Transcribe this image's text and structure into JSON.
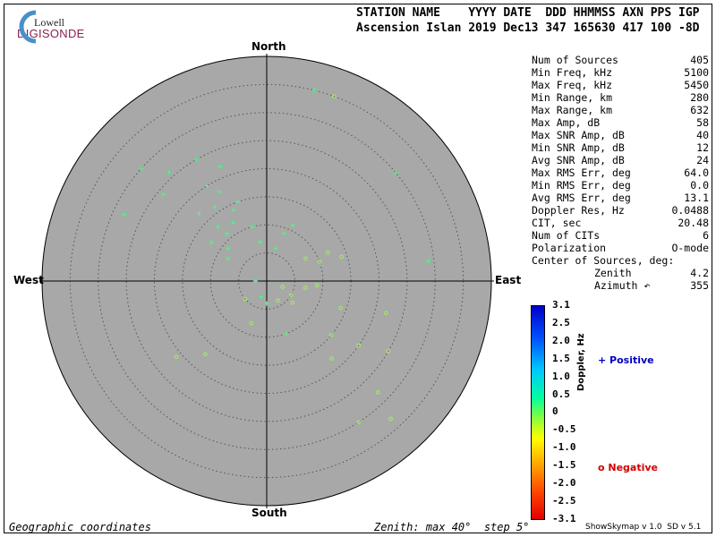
{
  "logo": {
    "top": "Lowell",
    "bottom": "DIGISONDE"
  },
  "header": {
    "line1": "STATION NAME    YYYY DATE  DDD HHMMSS AXN PPS IGP",
    "line2": "Ascension Islan 2019 Dec13 347 165630 417 100 -8D"
  },
  "directions": {
    "north": "North",
    "south": "South",
    "east": "East",
    "west": "West"
  },
  "stats": [
    {
      "label": "Num of Sources",
      "value": "405"
    },
    {
      "label": "Min Freq, kHz",
      "value": "5100"
    },
    {
      "label": "Max Freq, kHz",
      "value": "5450"
    },
    {
      "label": "Min Range, km",
      "value": "280"
    },
    {
      "label": "Max Range, km",
      "value": "632"
    },
    {
      "label": "Max Amp, dB",
      "value": "58"
    },
    {
      "label": "Max SNR Amp, dB",
      "value": "40"
    },
    {
      "label": "Min SNR Amp, dB",
      "value": "12"
    },
    {
      "label": "Avg SNR Amp, dB",
      "value": "24"
    },
    {
      "label": "Max RMS Err, deg",
      "value": "64.0"
    },
    {
      "label": "Min RMS Err, deg",
      "value": "0.0"
    },
    {
      "label": "Avg RMS Err, deg",
      "value": "13.1"
    },
    {
      "label": "Doppler Res, Hz",
      "value": "0.0488"
    },
    {
      "label": "CIT, sec",
      "value": "20.48"
    },
    {
      "label": "Num of CITs",
      "value": "6"
    },
    {
      "label": "Polarization",
      "value": "O-mode"
    },
    {
      "label": "Center of Sources, deg:",
      "value": ""
    },
    {
      "label": "Zenith",
      "value": "4.2",
      "indent": true
    },
    {
      "label": "Azimuth ↶",
      "value": "355",
      "indent": true
    }
  ],
  "colorbar": {
    "title": "Doppler, Hz",
    "ticks": [
      "3.1",
      "2.5",
      "2.0",
      "1.5",
      "1.0",
      "0.5",
      "0",
      "-0.5",
      "-1.0",
      "-1.5",
      "-2.0",
      "-2.5",
      "-3.1"
    ],
    "range": [
      -3.1,
      3.1
    ]
  },
  "legend": {
    "positive": "+ Positive",
    "negative": "o Negative"
  },
  "footer": {
    "left": "Geographic coordinates",
    "mid": "Zenith: max 40°  step 5°",
    "right": "ShowSkymap v 1.0  SD v 5.1"
  },
  "chart_data": {
    "type": "scatter",
    "title": "",
    "xlabel": "",
    "ylabel": "",
    "polar": true,
    "zenith_max_deg": 40,
    "ring_step_deg": 5,
    "marker_encoding": "+ = positive Doppler, o = negative Doppler",
    "series": [
      {
        "marker": "plus",
        "color": "#40ff80",
        "points": [
          {
            "zenith": 12,
            "azimuth": 330
          },
          {
            "zenith": 14,
            "azimuth": 335
          },
          {
            "zenith": 16,
            "azimuth": 325
          },
          {
            "zenith": 11,
            "azimuth": 320
          },
          {
            "zenith": 9,
            "azimuth": 310
          },
          {
            "zenith": 13,
            "azimuth": 318
          },
          {
            "zenith": 15,
            "azimuth": 340
          },
          {
            "zenith": 18,
            "azimuth": 332
          },
          {
            "zenith": 20,
            "azimuth": 328
          },
          {
            "zenith": 22,
            "azimuth": 338
          },
          {
            "zenith": 8,
            "azimuth": 300
          },
          {
            "zenith": 10,
            "azimuth": 345
          },
          {
            "zenith": 7,
            "azimuth": 350
          },
          {
            "zenith": 12,
            "azimuth": 305
          },
          {
            "zenith": 17,
            "azimuth": 315
          },
          {
            "zenith": 25,
            "azimuth": 330
          },
          {
            "zenith": 26,
            "azimuth": 318
          },
          {
            "zenith": 24,
            "azimuth": 310
          },
          {
            "zenith": 6,
            "azimuth": 15
          },
          {
            "zenith": 9,
            "azimuth": 20
          },
          {
            "zenith": 11,
            "azimuth": 25
          },
          {
            "zenith": 35,
            "azimuth": 14
          },
          {
            "zenith": 30,
            "azimuth": 50
          },
          {
            "zenith": 29,
            "azimuth": 83
          },
          {
            "zenith": 30,
            "azimuth": 312
          },
          {
            "zenith": 28,
            "azimuth": 295
          },
          {
            "zenith": 4,
            "azimuth": 180
          },
          {
            "zenith": 2,
            "azimuth": 270
          },
          {
            "zenith": 3,
            "azimuth": 200
          },
          {
            "zenith": 10,
            "azimuth": 160
          }
        ]
      },
      {
        "marker": "circle",
        "color": "#a0f060",
        "points": [
          {
            "zenith": 8,
            "azimuth": 60
          },
          {
            "zenith": 10,
            "azimuth": 70
          },
          {
            "zenith": 12,
            "azimuth": 65
          },
          {
            "zenith": 14,
            "azimuth": 72
          },
          {
            "zenith": 5,
            "azimuth": 120
          },
          {
            "zenith": 6,
            "azimuth": 130
          },
          {
            "zenith": 4,
            "azimuth": 150
          },
          {
            "zenith": 3,
            "azimuth": 110
          },
          {
            "zenith": 7,
            "azimuth": 100
          },
          {
            "zenith": 9,
            "azimuth": 95
          },
          {
            "zenith": 15,
            "azimuth": 130
          },
          {
            "zenith": 18,
            "azimuth": 140
          },
          {
            "zenith": 20,
            "azimuth": 125
          },
          {
            "zenith": 25,
            "azimuth": 120
          },
          {
            "zenith": 28,
            "azimuth": 135
          },
          {
            "zenith": 33,
            "azimuth": 138
          },
          {
            "zenith": 30,
            "azimuth": 147
          },
          {
            "zenith": 14,
            "azimuth": 110
          },
          {
            "zenith": 22,
            "azimuth": 105
          },
          {
            "zenith": 17,
            "azimuth": 220
          },
          {
            "zenith": 21,
            "azimuth": 230
          },
          {
            "zenith": 5,
            "azimuth": 230
          },
          {
            "zenith": 8,
            "azimuth": 200
          },
          {
            "zenith": 35,
            "azimuth": 20
          }
        ]
      }
    ]
  }
}
